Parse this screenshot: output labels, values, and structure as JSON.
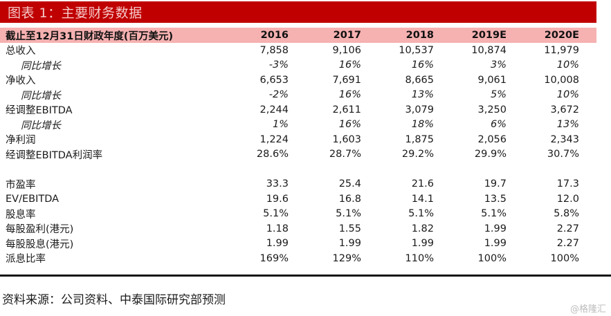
{
  "header": {
    "title": "图表 1：主要财务数据"
  },
  "colors": {
    "header_red": "#C00000",
    "header_title_text": "#F6C9C9",
    "column_header_pink": "#F6B1B1",
    "divider_black": "#111111",
    "watermark_gray": "#BDBDBD"
  },
  "table": {
    "header_label": "截止至12月31日财政年度(百万美元)",
    "years": [
      "2016",
      "2017",
      "2018",
      "2019E",
      "2020E"
    ],
    "rows": [
      {
        "label": "总收入",
        "style": "normal",
        "values": [
          "7,858",
          "9,106",
          "10,537",
          "10,874",
          "11,979"
        ]
      },
      {
        "label": "同比增长",
        "style": "growth",
        "values": [
          "-3%",
          "16%",
          "16%",
          "3%",
          "10%"
        ]
      },
      {
        "label": "净收入",
        "style": "normal",
        "values": [
          "6,653",
          "7,691",
          "8,665",
          "9,061",
          "10,008"
        ]
      },
      {
        "label": "同比增长",
        "style": "growth",
        "values": [
          "-2%",
          "16%",
          "13%",
          "5%",
          "10%"
        ]
      },
      {
        "label": "经调整EBITDA",
        "style": "normal",
        "values": [
          "2,244",
          "2,611",
          "3,079",
          "3,250",
          "3,672"
        ]
      },
      {
        "label": "同比增长",
        "style": "growth",
        "values": [
          "1%",
          "16%",
          "18%",
          "6%",
          "13%"
        ]
      },
      {
        "label": "净利润",
        "style": "normal",
        "values": [
          "1,224",
          "1,603",
          "1,875",
          "2,056",
          "2,343"
        ]
      },
      {
        "label": "经调整EBITDA利润率",
        "style": "normal",
        "values": [
          "28.6%",
          "28.7%",
          "29.2%",
          "29.9%",
          "30.7%"
        ]
      },
      {
        "label": "",
        "style": "spacer",
        "values": [
          "",
          "",
          "",
          "",
          ""
        ]
      },
      {
        "label": "市盈率",
        "style": "normal",
        "values": [
          "33.3",
          "25.4",
          "21.6",
          "19.7",
          "17.3"
        ]
      },
      {
        "label": "EV/EBITDA",
        "style": "normal",
        "values": [
          "19.6",
          "16.8",
          "14.1",
          "13.5",
          "12.0"
        ]
      },
      {
        "label": "股息率",
        "style": "normal",
        "values": [
          "5.1%",
          "5.1%",
          "5.1%",
          "5.1%",
          "5.8%"
        ]
      },
      {
        "label": "每股盈利(港元)",
        "style": "normal",
        "values": [
          "1.18",
          "1.55",
          "1.82",
          "1.99",
          "2.27"
        ]
      },
      {
        "label": "每股股息(港元)",
        "style": "normal",
        "values": [
          "1.99",
          "1.99",
          "1.99",
          "1.99",
          "2.27"
        ]
      },
      {
        "label": "派息比率",
        "style": "normal",
        "values": [
          "169%",
          "129%",
          "110%",
          "100%",
          "100%"
        ]
      }
    ]
  },
  "footer": {
    "source": "资料来源：公司资料、中泰国际研究部预测",
    "watermark": "@格隆汇"
  },
  "chart_data": {
    "type": "table",
    "title": "图表 1：主要财务数据",
    "unit_note": "截止至12月31日财政年度(百万美元)",
    "categories": [
      "2016",
      "2017",
      "2018",
      "2019E",
      "2020E"
    ],
    "series": [
      {
        "name": "总收入",
        "unit": "百万美元",
        "values": [
          7858,
          9106,
          10537,
          10874,
          11979
        ]
      },
      {
        "name": "总收入同比增长",
        "unit": "%",
        "values": [
          -3,
          16,
          16,
          3,
          10
        ]
      },
      {
        "name": "净收入",
        "unit": "百万美元",
        "values": [
          6653,
          7691,
          8665,
          9061,
          10008
        ]
      },
      {
        "name": "净收入同比增长",
        "unit": "%",
        "values": [
          -2,
          16,
          13,
          5,
          10
        ]
      },
      {
        "name": "经调整EBITDA",
        "unit": "百万美元",
        "values": [
          2244,
          2611,
          3079,
          3250,
          3672
        ]
      },
      {
        "name": "经调整EBITDA同比增长",
        "unit": "%",
        "values": [
          1,
          16,
          18,
          6,
          13
        ]
      },
      {
        "name": "净利润",
        "unit": "百万美元",
        "values": [
          1224,
          1603,
          1875,
          2056,
          2343
        ]
      },
      {
        "name": "经调整EBITDA利润率",
        "unit": "%",
        "values": [
          28.6,
          28.7,
          29.2,
          29.9,
          30.7
        ]
      },
      {
        "name": "市盈率",
        "unit": "x",
        "values": [
          33.3,
          25.4,
          21.6,
          19.7,
          17.3
        ]
      },
      {
        "name": "EV/EBITDA",
        "unit": "x",
        "values": [
          19.6,
          16.8,
          14.1,
          13.5,
          12.0
        ]
      },
      {
        "name": "股息率",
        "unit": "%",
        "values": [
          5.1,
          5.1,
          5.1,
          5.1,
          5.8
        ]
      },
      {
        "name": "每股盈利(港元)",
        "unit": "港元",
        "values": [
          1.18,
          1.55,
          1.82,
          1.99,
          2.27
        ]
      },
      {
        "name": "每股股息(港元)",
        "unit": "港元",
        "values": [
          1.99,
          1.99,
          1.99,
          1.99,
          2.27
        ]
      },
      {
        "name": "派息比率",
        "unit": "%",
        "values": [
          169,
          129,
          110,
          100,
          100
        ]
      }
    ],
    "source": "资料来源：公司资料、中泰国际研究部预测"
  }
}
